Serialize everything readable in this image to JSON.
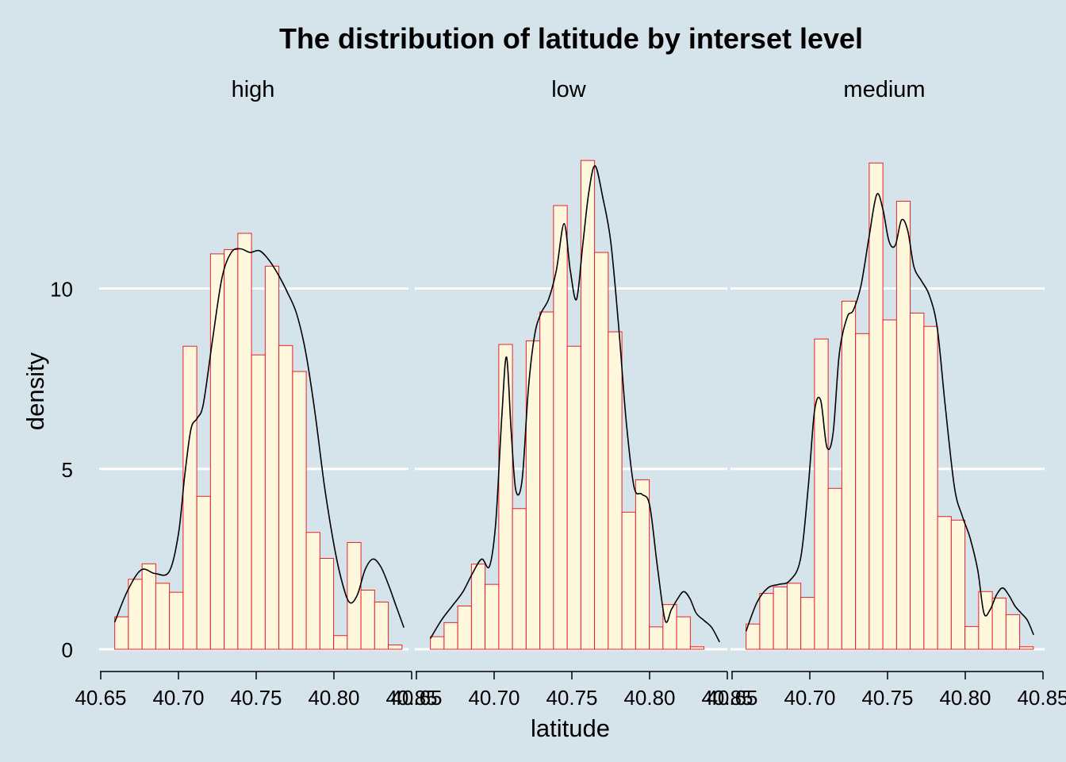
{
  "chart_data": {
    "type": "bar",
    "title": "The distribution of latitude by interset level",
    "xlabel": "latitude",
    "ylabel": "density",
    "facet_variable": "interset level",
    "xlim": [
      40.65,
      40.85
    ],
    "x_ticks": [
      "40.65",
      "40.70",
      "40.75",
      "40.80",
      "40.85"
    ],
    "ylim": [
      0,
      14
    ],
    "y_ticks": [
      "0",
      "5",
      "10"
    ],
    "grid": "horizontal",
    "bin_start": 40.659,
    "bin_width": 0.0088,
    "colors": {
      "background": "#d5e4eb",
      "bar_fill": "#fff8dc",
      "bar_edge": "#e8202a",
      "density_line": "#000000",
      "gridline": "#ffffff"
    },
    "panels": [
      {
        "label": "high",
        "histogram": [
          0.9,
          1.94,
          2.37,
          1.83,
          1.58,
          8.4,
          4.24,
          10.96,
          11.08,
          11.53,
          8.16,
          10.62,
          8.42,
          7.7,
          3.24,
          2.52,
          0.38,
          2.96,
          1.64,
          1.31,
          0.12
        ],
        "density": {
          "x": [
            40.659,
            40.667,
            40.676,
            40.685,
            40.694,
            40.7,
            40.704,
            40.708,
            40.712,
            40.716,
            40.722,
            40.728,
            40.734,
            40.74,
            40.746,
            40.752,
            40.758,
            40.764,
            40.77,
            40.776,
            40.782,
            40.788,
            40.794,
            40.8,
            40.805,
            40.81,
            40.815,
            40.82,
            40.825,
            40.83,
            40.835,
            40.84,
            40.845
          ],
          "y": [
            0.75,
            1.6,
            2.2,
            2.1,
            2.15,
            3.2,
            4.8,
            6.1,
            6.4,
            6.8,
            8.6,
            10.3,
            11.0,
            11.1,
            11.0,
            11.05,
            10.8,
            10.4,
            9.9,
            9.3,
            8.2,
            6.5,
            4.5,
            2.9,
            1.9,
            1.3,
            1.5,
            2.2,
            2.5,
            2.3,
            1.8,
            1.2,
            0.6
          ]
        }
      },
      {
        "label": "low",
        "histogram": [
          0.35,
          0.74,
          1.2,
          2.36,
          1.8,
          8.45,
          3.9,
          8.55,
          9.35,
          12.3,
          8.4,
          13.55,
          11.0,
          8.8,
          3.8,
          4.7,
          0.62,
          1.24,
          0.9,
          0.07
        ],
        "density": {
          "x": [
            40.659,
            40.666,
            40.673,
            40.68,
            40.686,
            40.692,
            40.697,
            40.701,
            40.705,
            40.708,
            40.711,
            40.714,
            40.718,
            40.722,
            40.726,
            40.73,
            40.735,
            40.74,
            40.745,
            40.749,
            40.753,
            40.757,
            40.761,
            40.765,
            40.77,
            40.775,
            40.78,
            40.785,
            40.79,
            40.795,
            40.8,
            40.805,
            40.81,
            40.814,
            40.818,
            40.822,
            40.826,
            40.83,
            40.835,
            40.84,
            40.845
          ],
          "y": [
            0.3,
            0.8,
            1.2,
            1.6,
            2.1,
            2.5,
            2.3,
            3.5,
            6.5,
            8.1,
            6.0,
            4.4,
            4.7,
            7.2,
            8.7,
            9.3,
            9.7,
            10.5,
            11.8,
            10.5,
            9.7,
            11.2,
            12.7,
            13.4,
            12.5,
            11.3,
            9.0,
            6.3,
            4.5,
            4.3,
            4.0,
            2.3,
            0.8,
            1.1,
            1.4,
            1.6,
            1.4,
            1.0,
            0.8,
            0.6,
            0.2
          ]
        }
      },
      {
        "label": "medium",
        "histogram": [
          0.7,
          1.55,
          1.73,
          1.83,
          1.44,
          8.6,
          4.46,
          9.65,
          8.75,
          13.48,
          9.13,
          12.42,
          9.32,
          8.95,
          3.68,
          3.58,
          0.63,
          1.6,
          1.42,
          0.96,
          0.07
        ],
        "density": {
          "x": [
            40.659,
            40.666,
            40.673,
            40.68,
            40.687,
            40.694,
            40.699,
            40.703,
            40.707,
            40.711,
            40.715,
            40.719,
            40.724,
            40.728,
            40.733,
            40.738,
            40.743,
            40.747,
            40.751,
            40.755,
            40.759,
            40.763,
            40.767,
            40.772,
            40.777,
            40.782,
            40.787,
            40.793,
            40.798,
            40.803,
            40.808,
            40.812,
            40.816,
            40.82,
            40.824,
            40.828,
            40.832,
            40.836,
            40.84,
            40.844
          ],
          "y": [
            0.5,
            1.3,
            1.7,
            1.8,
            1.9,
            2.5,
            4.5,
            6.6,
            6.9,
            5.6,
            6.0,
            8.2,
            9.2,
            9.4,
            10.1,
            11.4,
            12.6,
            12.2,
            11.3,
            11.2,
            11.9,
            11.6,
            10.6,
            10.2,
            9.8,
            8.9,
            6.8,
            4.5,
            3.7,
            3.1,
            2.2,
            1.0,
            1.1,
            1.5,
            1.7,
            1.5,
            1.2,
            1.0,
            0.8,
            0.4
          ]
        }
      }
    ]
  }
}
